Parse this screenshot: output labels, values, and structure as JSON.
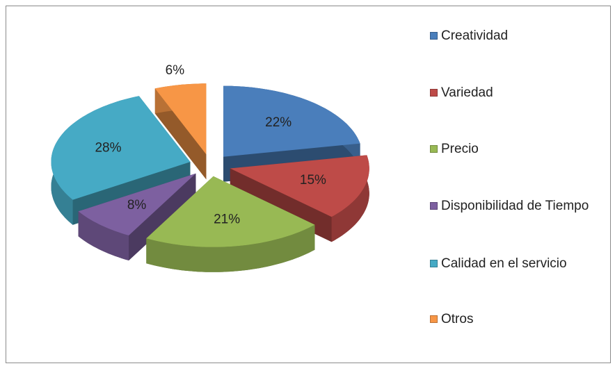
{
  "chart_data": {
    "type": "pie",
    "categories": [
      "Creatividad",
      "Variedad",
      "Precio",
      "Disponibilidad de Tiempo",
      "Calidad en el servicio",
      "Otros"
    ],
    "values": [
      22,
      15,
      21,
      8,
      28,
      6
    ],
    "value_labels": [
      "22%",
      "15%",
      "21%",
      "8%",
      "28%",
      "6%"
    ],
    "colors": [
      "#4a7ebb",
      "#be4b48",
      "#98b954",
      "#7d60a0",
      "#46aac5",
      "#f79646"
    ],
    "legend": "right"
  }
}
